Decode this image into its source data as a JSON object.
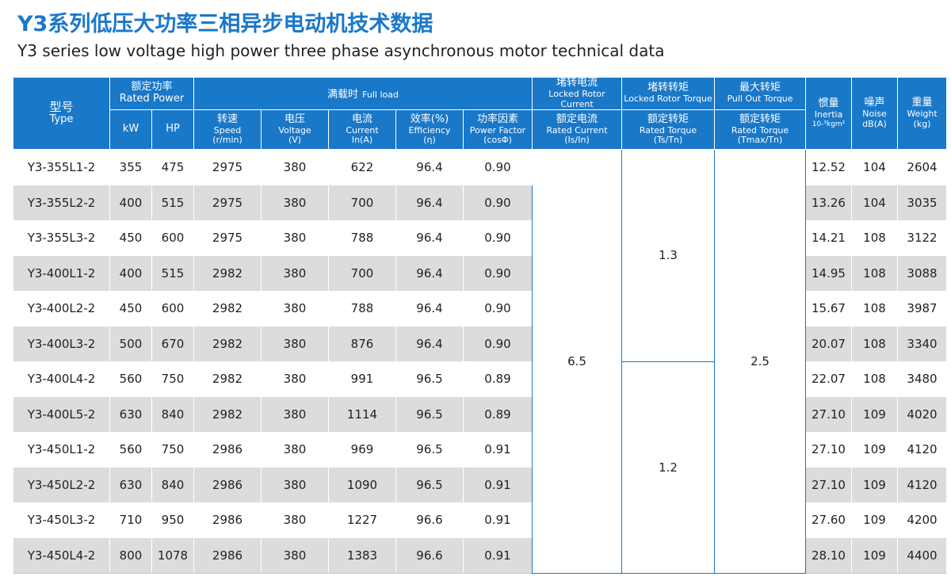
{
  "title": {
    "cn": "Y3系列低压大功率三相异步电动机技术数据",
    "en": "Y3 series low voltage high power three phase asynchronous motor technical data"
  },
  "headers": {
    "type": {
      "cn": "型号",
      "en": "Type"
    },
    "rated_power": {
      "cn": "额定功率",
      "en": "Rated Power"
    },
    "kw": "kW",
    "hp": "HP",
    "full_load": {
      "cn": "满载时",
      "en": "Full load"
    },
    "speed": {
      "cn": "转速",
      "en": "Speed",
      "unit": "(r/min)"
    },
    "voltage": {
      "cn": "电压",
      "en": "Voltage",
      "unit": "(V)"
    },
    "current": {
      "cn": "电流",
      "en": "Current",
      "unit": "In(A)"
    },
    "efficiency": {
      "cn": "效率(%)",
      "en": "Efficiency",
      "unit": "(η)"
    },
    "power_factor": {
      "cn": "功率因素",
      "en": "Power Factor",
      "unit": "(cosΦ)"
    },
    "locked_rotor_current": {
      "cn": "堵转电流",
      "en": "Locked Rotor Current",
      "sub_cn": "额定电流",
      "sub_en": "Rated Current",
      "unit": "(Is/In)"
    },
    "locked_rotor_torque": {
      "cn": "堵转转矩",
      "en": "Locked Rotor Torque",
      "sub_cn": "额定转矩",
      "sub_en": "Rated Torque",
      "unit": "(Ts/Tn)"
    },
    "pull_out_torque": {
      "cn": "最大转矩",
      "en": "Pull Out Torque",
      "sub_cn": "额定转矩",
      "sub_en": "Rated Torque",
      "unit": "(Tmax/Tn)"
    },
    "inertia": {
      "cn": "惯量",
      "en": "Inertia",
      "unit": "10-³kgm²"
    },
    "noise": {
      "cn": "噪声",
      "en": "Noise",
      "unit": "dB(A)"
    },
    "weight": {
      "cn": "重量",
      "en": "Weight",
      "unit": "(kg)"
    }
  },
  "merged_values": {
    "locked_rotor_current": "6.5",
    "locked_rotor_torque_upper": "1.3",
    "locked_rotor_torque_lower": "1.2",
    "pull_out_torque": "2.5"
  },
  "rows": [
    {
      "type": "Y3-355L1-2",
      "kw": "355",
      "hp": "475",
      "speed": "2975",
      "voltage": "380",
      "current": "622",
      "efficiency": "96.4",
      "pf": "0.90",
      "inertia": "12.52",
      "noise": "104",
      "weight": "2604"
    },
    {
      "type": "Y3-355L2-2",
      "kw": "400",
      "hp": "515",
      "speed": "2975",
      "voltage": "380",
      "current": "700",
      "efficiency": "96.4",
      "pf": "0.90",
      "inertia": "13.26",
      "noise": "104",
      "weight": "3035"
    },
    {
      "type": "Y3-355L3-2",
      "kw": "450",
      "hp": "600",
      "speed": "2975",
      "voltage": "380",
      "current": "788",
      "efficiency": "96.4",
      "pf": "0.90",
      "inertia": "14.21",
      "noise": "108",
      "weight": "3122"
    },
    {
      "type": "Y3-400L1-2",
      "kw": "400",
      "hp": "515",
      "speed": "2982",
      "voltage": "380",
      "current": "700",
      "efficiency": "96.4",
      "pf": "0.90",
      "inertia": "14.95",
      "noise": "108",
      "weight": "3088"
    },
    {
      "type": "Y3-400L2-2",
      "kw": "450",
      "hp": "600",
      "speed": "2982",
      "voltage": "380",
      "current": "788",
      "efficiency": "96.4",
      "pf": "0.90",
      "inertia": "15.67",
      "noise": "108",
      "weight": "3987"
    },
    {
      "type": "Y3-400L3-2",
      "kw": "500",
      "hp": "670",
      "speed": "2982",
      "voltage": "380",
      "current": "876",
      "efficiency": "96.4",
      "pf": "0.90",
      "inertia": "20.07",
      "noise": "108",
      "weight": "3340"
    },
    {
      "type": "Y3-400L4-2",
      "kw": "560",
      "hp": "750",
      "speed": "2982",
      "voltage": "380",
      "current": "991",
      "efficiency": "96.5",
      "pf": "0.89",
      "inertia": "22.07",
      "noise": "108",
      "weight": "3480"
    },
    {
      "type": "Y3-400L5-2",
      "kw": "630",
      "hp": "840",
      "speed": "2982",
      "voltage": "380",
      "current": "1114",
      "efficiency": "96.5",
      "pf": "0.89",
      "inertia": "27.10",
      "noise": "109",
      "weight": "4020"
    },
    {
      "type": "Y3-450L1-2",
      "kw": "560",
      "hp": "750",
      "speed": "2986",
      "voltage": "380",
      "current": "969",
      "efficiency": "96.5",
      "pf": "0.91",
      "inertia": "27.10",
      "noise": "109",
      "weight": "4120"
    },
    {
      "type": "Y3-450L2-2",
      "kw": "630",
      "hp": "840",
      "speed": "2986",
      "voltage": "380",
      "current": "1090",
      "efficiency": "96.5",
      "pf": "0.91",
      "inertia": "27.10",
      "noise": "109",
      "weight": "4120"
    },
    {
      "type": "Y3-450L3-2",
      "kw": "710",
      "hp": "950",
      "speed": "2986",
      "voltage": "380",
      "current": "1227",
      "efficiency": "96.6",
      "pf": "0.91",
      "inertia": "27.60",
      "noise": "109",
      "weight": "4200"
    },
    {
      "type": "Y3-450L4-2",
      "kw": "800",
      "hp": "1078",
      "speed": "2986",
      "voltage": "380",
      "current": "1383",
      "efficiency": "96.6",
      "pf": "0.91",
      "inertia": "28.10",
      "noise": "109",
      "weight": "4400"
    }
  ],
  "colors": {
    "header_blue": "#1a78c9",
    "stripe_gray": "#dcdcdc",
    "title_blue": "#1a78c9"
  }
}
